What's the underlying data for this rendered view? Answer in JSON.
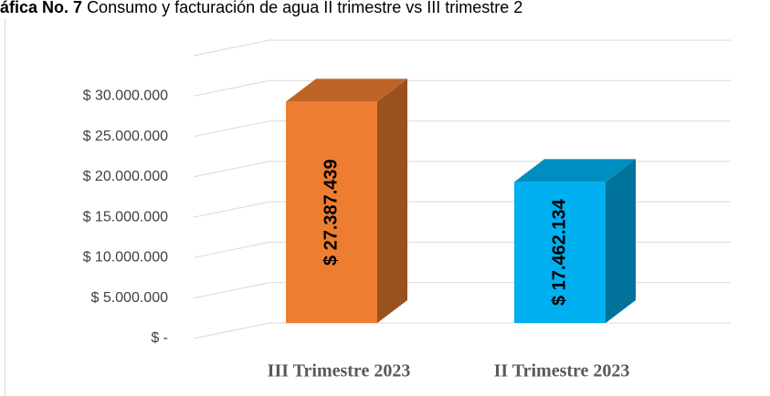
{
  "chart_data": {
    "type": "bar3d",
    "title_bold": "áfica No. 7",
    "title": "Consumo y facturación de agua II trimestre vs III trimestre 2",
    "categories": [
      "III Trimestre 2023",
      "II Trimestre 2023"
    ],
    "values": [
      27387439,
      17462134
    ],
    "value_labels": [
      "$ 27.387.439",
      "$ 17.462.134"
    ],
    "colors": [
      "#ed7d31",
      "#00b0f0"
    ],
    "ylim": [
      0,
      35000000
    ],
    "yticks": [
      {
        "value": 0,
        "label": "$ -"
      },
      {
        "value": 5000000,
        "label": "$ 5.000.000"
      },
      {
        "value": 10000000,
        "label": "$ 10.000.000"
      },
      {
        "value": 15000000,
        "label": "$ 15.000.000"
      },
      {
        "value": 20000000,
        "label": "$ 20.000.000"
      },
      {
        "value": 25000000,
        "label": "$ 25.000.000"
      },
      {
        "value": 30000000,
        "label": "$ 30.000.000"
      }
    ],
    "grid": true
  }
}
